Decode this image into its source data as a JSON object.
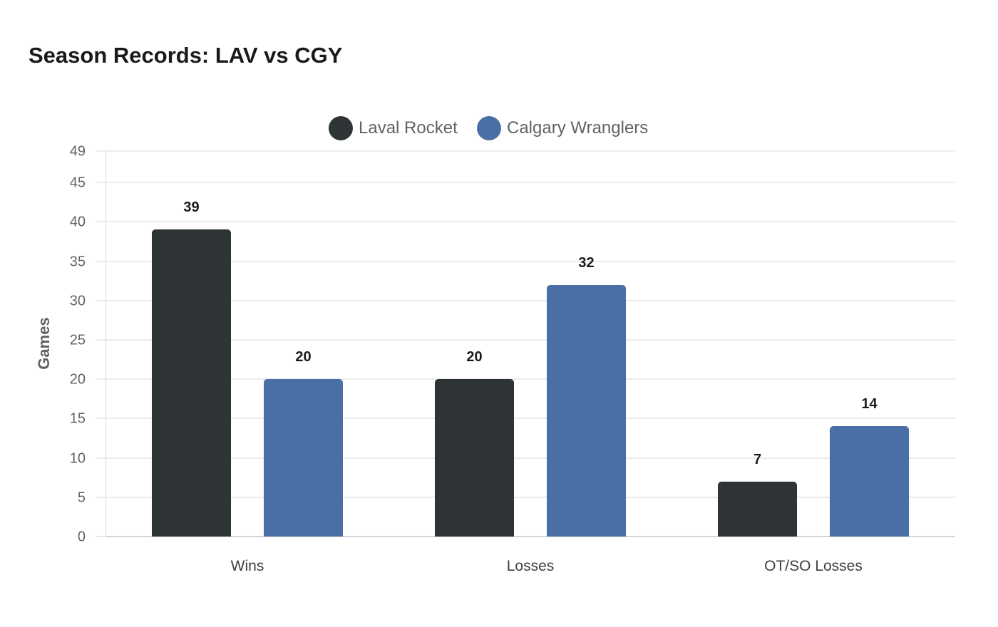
{
  "title": "Season Records: LAV vs CGY",
  "legend": [
    {
      "label": "Laval Rocket",
      "color": "#2e3436"
    },
    {
      "label": "Calgary Wranglers",
      "color": "#4a6fa5"
    }
  ],
  "y_axis": {
    "title": "Games",
    "ticks": [
      "0",
      "5",
      "10",
      "15",
      "20",
      "25",
      "30",
      "35",
      "40",
      "45",
      "49"
    ]
  },
  "x_axis": {
    "ticks": [
      "Wins",
      "Losses",
      "OT/SO Losses"
    ]
  },
  "bar_labels": {
    "wins": {
      "lav": "39",
      "cgy": "20"
    },
    "losses": {
      "lav": "20",
      "cgy": "32"
    },
    "otl": {
      "lav": "7",
      "cgy": "14"
    }
  },
  "chart_data": {
    "type": "bar",
    "title": "Season Records: LAV vs CGY",
    "categories": [
      "Wins",
      "Losses",
      "OT/SO Losses"
    ],
    "series": [
      {
        "name": "Laval Rocket",
        "color": "#2e3436",
        "values": [
          39,
          20,
          7
        ]
      },
      {
        "name": "Calgary Wranglers",
        "color": "#4a6fa5",
        "values": [
          20,
          32,
          14
        ]
      }
    ],
    "xlabel": "",
    "ylabel": "Games",
    "ylim": [
      0,
      49
    ],
    "yticks": [
      0,
      5,
      10,
      15,
      20,
      25,
      30,
      35,
      40,
      45,
      49
    ],
    "grid": true,
    "legend_position": "top",
    "data_labels": true
  }
}
